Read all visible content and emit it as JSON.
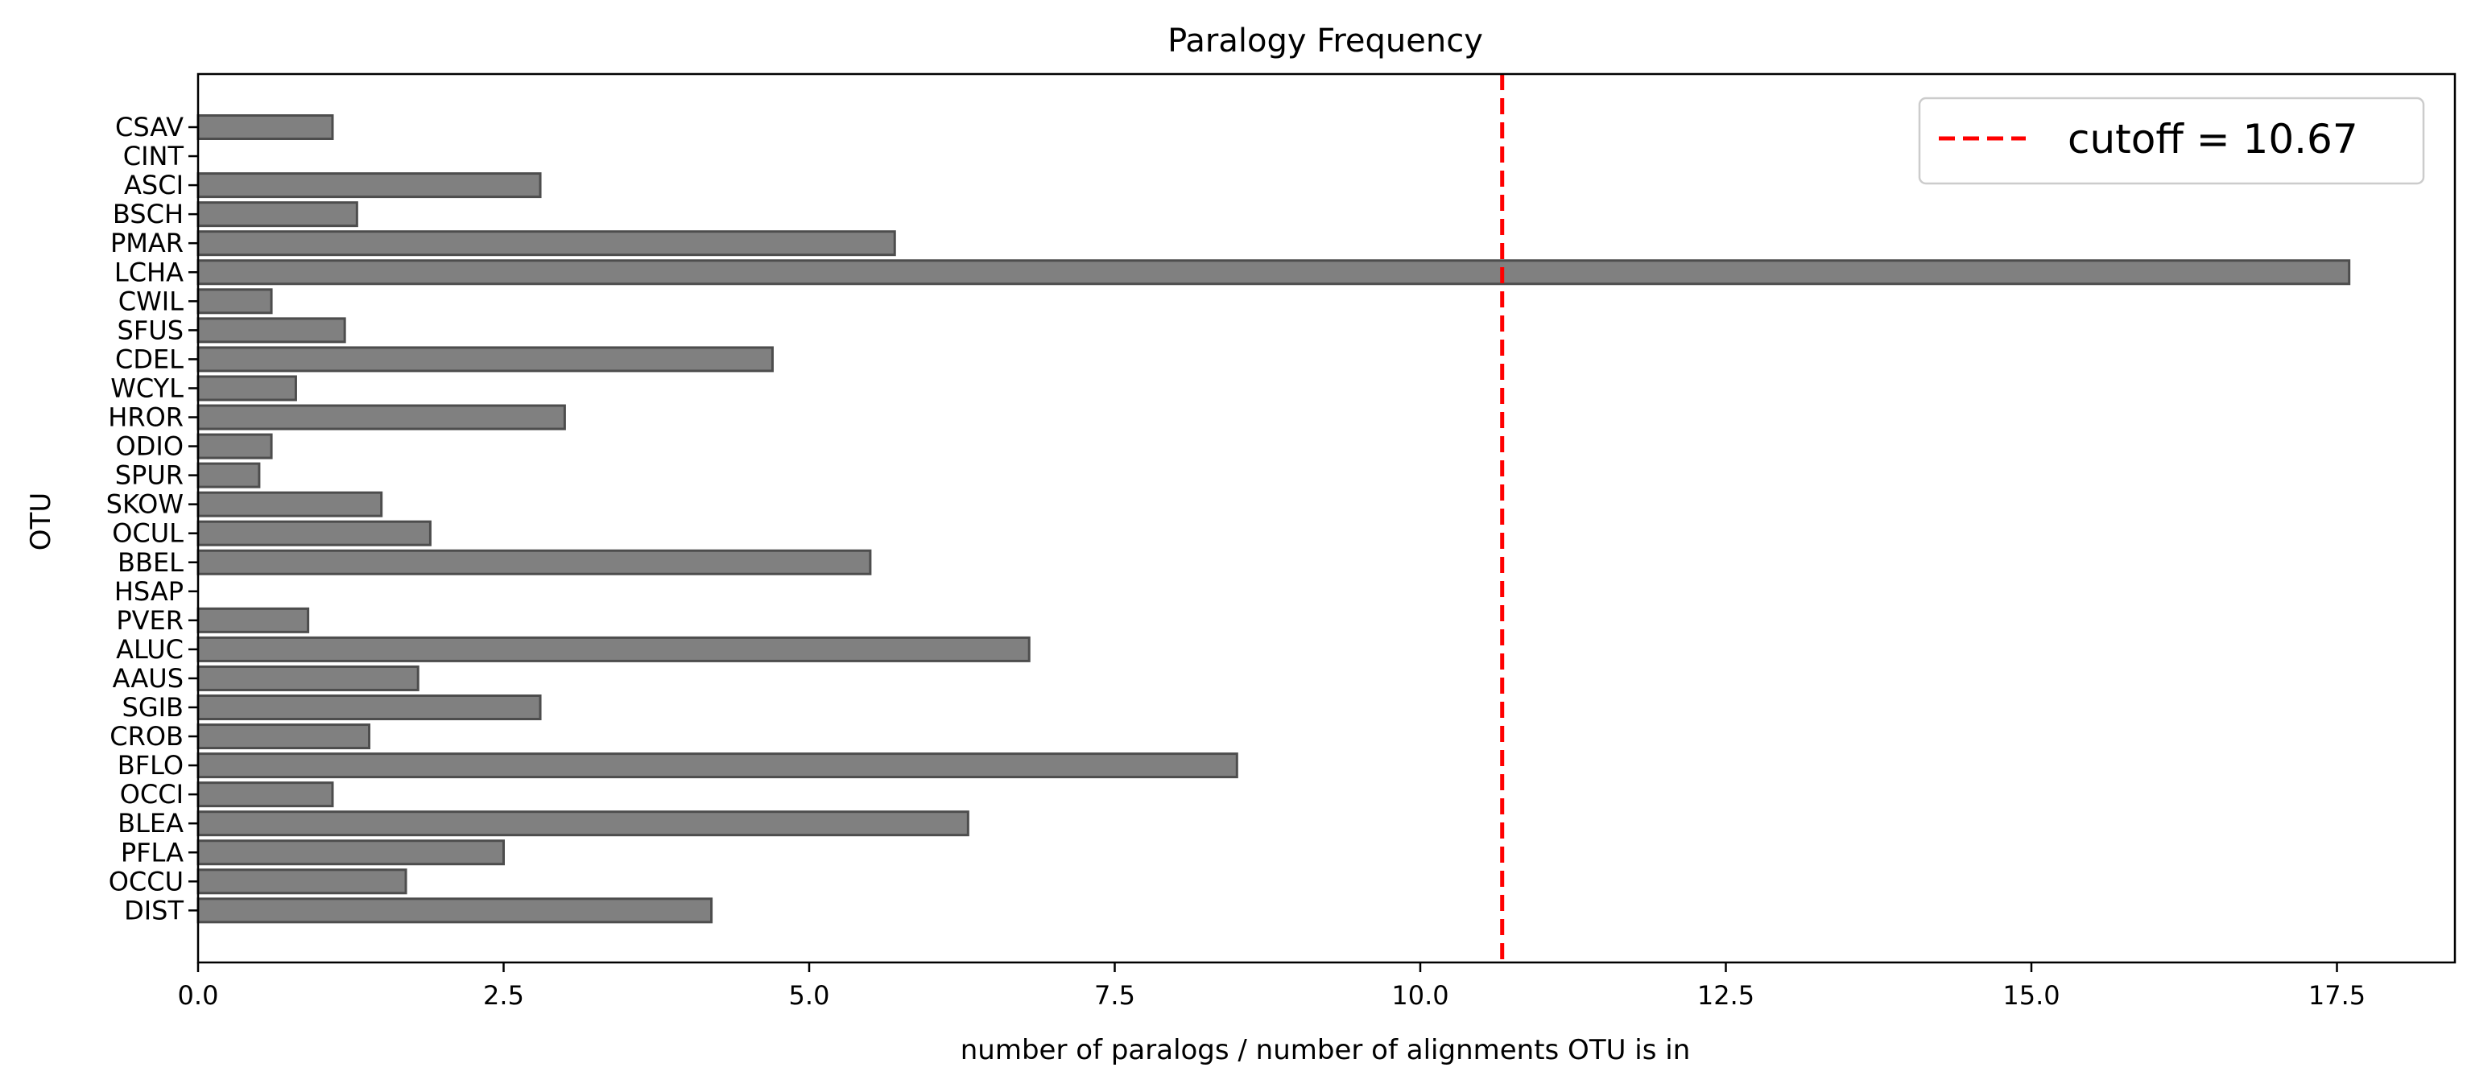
{
  "chart_data": {
    "type": "bar",
    "orientation": "horizontal",
    "title": "Paralogy Frequency",
    "xlabel": "number of paralogs / number of alignments OTU is in",
    "ylabel": "OTU",
    "xlim": [
      0,
      18.5
    ],
    "xticks": [
      0.0,
      2.5,
      5.0,
      7.5,
      10.0,
      12.5,
      15.0,
      17.5
    ],
    "xtick_labels": [
      "0.0",
      "2.5",
      "5.0",
      "7.5",
      "10.0",
      "12.5",
      "15.0",
      "17.5"
    ],
    "categories": [
      "CSAV",
      "CINT",
      "ASCI",
      "BSCH",
      "PMAR",
      "LCHA",
      "CWIL",
      "SFUS",
      "CDEL",
      "WCYL",
      "HROR",
      "ODIO",
      "SPUR",
      "SKOW",
      "OCUL",
      "BBEL",
      "HSAP",
      "PVER",
      "ALUC",
      "AAUS",
      "SGIB",
      "CROB",
      "BFLO",
      "OCCI",
      "BLEA",
      "PFLA",
      "OCCU",
      "DIST"
    ],
    "values": [
      1.1,
      0,
      2.8,
      1.3,
      5.7,
      17.6,
      0.6,
      1.2,
      4.7,
      0.8,
      3.0,
      0.6,
      0.5,
      1.5,
      1.9,
      5.5,
      0,
      0.9,
      6.8,
      1.8,
      2.8,
      1.4,
      8.5,
      1.1,
      6.3,
      2.5,
      1.7,
      4.2
    ],
    "bar_color": "#808080",
    "bar_edge_color": "#4d4d4d",
    "cutoff": {
      "value": 10.67,
      "color": "#ff0000",
      "style": "dashed",
      "legend_label": "cutoff = 10.67"
    },
    "legend_position": "top-right",
    "grid": false
  }
}
